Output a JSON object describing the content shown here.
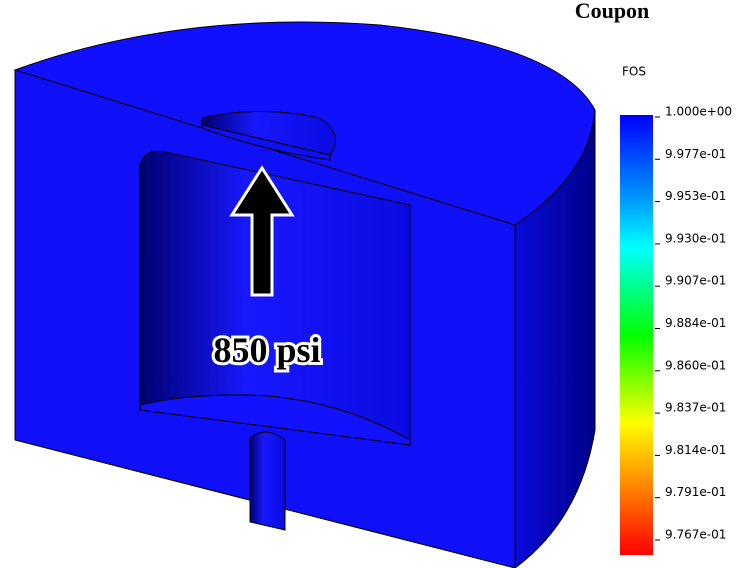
{
  "title": "Coupon",
  "annotation": "850 psi",
  "legend": {
    "title": "FOS",
    "ticks": [
      "1.000e+00",
      "9.977e-01",
      "9.953e-01",
      "9.930e-01",
      "9.907e-01",
      "9.884e-01",
      "9.860e-01",
      "9.837e-01",
      "9.814e-01",
      "9.791e-01",
      "9.767e-01"
    ]
  }
}
